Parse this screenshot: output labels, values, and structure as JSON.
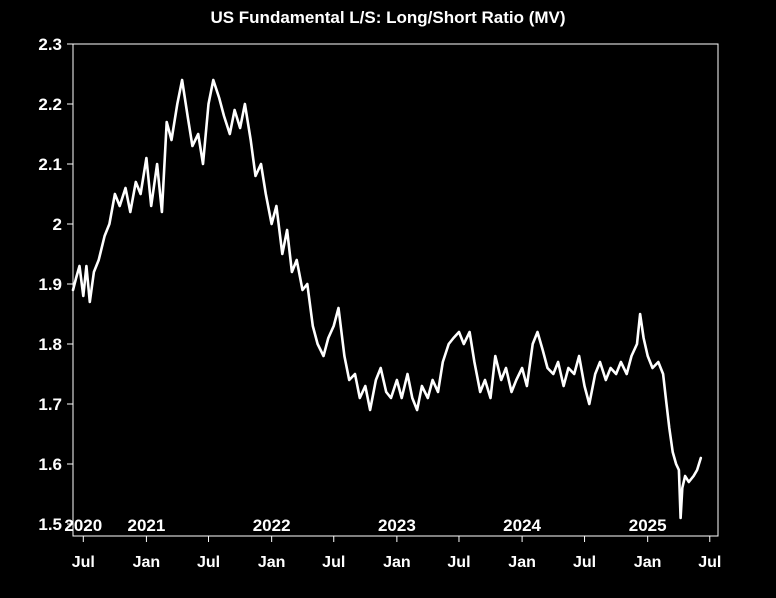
{
  "chart_data": {
    "type": "line",
    "title": "US Fundamental L/S: Long/Short Ratio (MV)",
    "xlabel": "",
    "ylabel": "",
    "ylim": [
      1.48,
      2.3
    ],
    "xlim": [
      "2020-06-01",
      "2025-07-25"
    ],
    "yticks": [
      {
        "value": 2.3,
        "label": "2.3"
      },
      {
        "value": 2.2,
        "label": "2.2"
      },
      {
        "value": 2.1,
        "label": "2.1"
      },
      {
        "value": 2.0,
        "label": "2"
      },
      {
        "value": 1.9,
        "label": "1.9"
      },
      {
        "value": 1.8,
        "label": "1.8"
      },
      {
        "value": 1.7,
        "label": "1.7"
      },
      {
        "value": 1.6,
        "label": "1.6"
      },
      {
        "value": 1.5,
        "label": "1.5"
      }
    ],
    "xticks": [
      {
        "date": "2020-07-01",
        "label": "Jul"
      },
      {
        "date": "2021-01-01",
        "label": "Jan"
      },
      {
        "date": "2021-07-01",
        "label": "Jul"
      },
      {
        "date": "2022-01-01",
        "label": "Jan"
      },
      {
        "date": "2022-07-01",
        "label": "Jul"
      },
      {
        "date": "2023-01-01",
        "label": "Jan"
      },
      {
        "date": "2023-07-01",
        "label": "Jul"
      },
      {
        "date": "2024-01-01",
        "label": "Jan"
      },
      {
        "date": "2024-07-01",
        "label": "Jul"
      },
      {
        "date": "2025-01-01",
        "label": "Jan"
      },
      {
        "date": "2025-07-01",
        "label": "Jul"
      }
    ],
    "year_labels": [
      {
        "date": "2020-07-01",
        "label": "2020"
      },
      {
        "date": "2021-01-01",
        "label": "2021"
      },
      {
        "date": "2022-01-01",
        "label": "2022"
      },
      {
        "date": "2023-01-01",
        "label": "2023"
      },
      {
        "date": "2024-01-01",
        "label": "2024"
      },
      {
        "date": "2025-01-01",
        "label": "2025"
      }
    ],
    "grid": false,
    "legend": "none",
    "colors": {
      "background": "#000000",
      "line": "#ffffff",
      "axis": "#ffffff",
      "text": "#ffffff"
    },
    "series": [
      {
        "points": [
          [
            "2020-06-01",
            1.89
          ],
          [
            "2020-06-10",
            1.91
          ],
          [
            "2020-06-20",
            1.93
          ],
          [
            "2020-07-01",
            1.88
          ],
          [
            "2020-07-10",
            1.93
          ],
          [
            "2020-07-20",
            1.87
          ],
          [
            "2020-08-01",
            1.92
          ],
          [
            "2020-08-15",
            1.94
          ],
          [
            "2020-09-01",
            1.98
          ],
          [
            "2020-09-15",
            2.0
          ],
          [
            "2020-10-01",
            2.05
          ],
          [
            "2020-10-15",
            2.03
          ],
          [
            "2020-11-01",
            2.06
          ],
          [
            "2020-11-15",
            2.02
          ],
          [
            "2020-12-01",
            2.07
          ],
          [
            "2020-12-15",
            2.05
          ],
          [
            "2021-01-01",
            2.11
          ],
          [
            "2021-01-15",
            2.03
          ],
          [
            "2021-02-01",
            2.1
          ],
          [
            "2021-02-15",
            2.02
          ],
          [
            "2021-03-01",
            2.17
          ],
          [
            "2021-03-15",
            2.14
          ],
          [
            "2021-04-01",
            2.2
          ],
          [
            "2021-04-15",
            2.24
          ],
          [
            "2021-05-01",
            2.18
          ],
          [
            "2021-05-15",
            2.13
          ],
          [
            "2021-06-01",
            2.15
          ],
          [
            "2021-06-15",
            2.1
          ],
          [
            "2021-07-01",
            2.2
          ],
          [
            "2021-07-15",
            2.24
          ],
          [
            "2021-08-01",
            2.21
          ],
          [
            "2021-08-15",
            2.18
          ],
          [
            "2021-09-01",
            2.15
          ],
          [
            "2021-09-15",
            2.19
          ],
          [
            "2021-10-01",
            2.16
          ],
          [
            "2021-10-15",
            2.2
          ],
          [
            "2021-11-01",
            2.14
          ],
          [
            "2021-11-15",
            2.08
          ],
          [
            "2021-12-01",
            2.1
          ],
          [
            "2021-12-15",
            2.05
          ],
          [
            "2022-01-01",
            2.0
          ],
          [
            "2022-01-15",
            2.03
          ],
          [
            "2022-02-01",
            1.95
          ],
          [
            "2022-02-15",
            1.99
          ],
          [
            "2022-03-01",
            1.92
          ],
          [
            "2022-03-15",
            1.94
          ],
          [
            "2022-04-01",
            1.89
          ],
          [
            "2022-04-15",
            1.9
          ],
          [
            "2022-05-01",
            1.83
          ],
          [
            "2022-05-15",
            1.8
          ],
          [
            "2022-06-01",
            1.78
          ],
          [
            "2022-06-15",
            1.81
          ],
          [
            "2022-07-01",
            1.83
          ],
          [
            "2022-07-15",
            1.86
          ],
          [
            "2022-08-01",
            1.78
          ],
          [
            "2022-08-15",
            1.74
          ],
          [
            "2022-09-01",
            1.75
          ],
          [
            "2022-09-15",
            1.71
          ],
          [
            "2022-10-01",
            1.73
          ],
          [
            "2022-10-15",
            1.69
          ],
          [
            "2022-11-01",
            1.74
          ],
          [
            "2022-11-15",
            1.76
          ],
          [
            "2022-12-01",
            1.72
          ],
          [
            "2022-12-15",
            1.71
          ],
          [
            "2023-01-01",
            1.74
          ],
          [
            "2023-01-15",
            1.71
          ],
          [
            "2023-02-01",
            1.75
          ],
          [
            "2023-02-15",
            1.71
          ],
          [
            "2023-03-01",
            1.69
          ],
          [
            "2023-03-15",
            1.73
          ],
          [
            "2023-04-01",
            1.71
          ],
          [
            "2023-04-15",
            1.74
          ],
          [
            "2023-05-01",
            1.72
          ],
          [
            "2023-05-15",
            1.77
          ],
          [
            "2023-06-01",
            1.8
          ],
          [
            "2023-06-15",
            1.81
          ],
          [
            "2023-07-01",
            1.82
          ],
          [
            "2023-07-15",
            1.8
          ],
          [
            "2023-08-01",
            1.82
          ],
          [
            "2023-08-15",
            1.77
          ],
          [
            "2023-09-01",
            1.72
          ],
          [
            "2023-09-15",
            1.74
          ],
          [
            "2023-10-01",
            1.71
          ],
          [
            "2023-10-15",
            1.78
          ],
          [
            "2023-11-01",
            1.74
          ],
          [
            "2023-11-15",
            1.76
          ],
          [
            "2023-12-01",
            1.72
          ],
          [
            "2023-12-15",
            1.74
          ],
          [
            "2024-01-01",
            1.76
          ],
          [
            "2024-01-15",
            1.73
          ],
          [
            "2024-02-01",
            1.8
          ],
          [
            "2024-02-15",
            1.82
          ],
          [
            "2024-03-01",
            1.79
          ],
          [
            "2024-03-15",
            1.76
          ],
          [
            "2024-04-01",
            1.75
          ],
          [
            "2024-04-15",
            1.77
          ],
          [
            "2024-05-01",
            1.73
          ],
          [
            "2024-05-15",
            1.76
          ],
          [
            "2024-06-01",
            1.75
          ],
          [
            "2024-06-15",
            1.78
          ],
          [
            "2024-07-01",
            1.73
          ],
          [
            "2024-07-15",
            1.7
          ],
          [
            "2024-08-01",
            1.75
          ],
          [
            "2024-08-15",
            1.77
          ],
          [
            "2024-09-01",
            1.74
          ],
          [
            "2024-09-15",
            1.76
          ],
          [
            "2024-10-01",
            1.75
          ],
          [
            "2024-10-15",
            1.77
          ],
          [
            "2024-11-01",
            1.75
          ],
          [
            "2024-11-15",
            1.78
          ],
          [
            "2024-12-01",
            1.8
          ],
          [
            "2024-12-10",
            1.85
          ],
          [
            "2024-12-20",
            1.81
          ],
          [
            "2025-01-01",
            1.78
          ],
          [
            "2025-01-15",
            1.76
          ],
          [
            "2025-02-01",
            1.77
          ],
          [
            "2025-02-15",
            1.75
          ],
          [
            "2025-02-25",
            1.7
          ],
          [
            "2025-03-05",
            1.66
          ],
          [
            "2025-03-15",
            1.62
          ],
          [
            "2025-03-25",
            1.6
          ],
          [
            "2025-04-02",
            1.59
          ],
          [
            "2025-04-07",
            1.51
          ],
          [
            "2025-04-12",
            1.56
          ],
          [
            "2025-04-20",
            1.58
          ],
          [
            "2025-05-01",
            1.57
          ],
          [
            "2025-05-15",
            1.58
          ],
          [
            "2025-05-25",
            1.59
          ],
          [
            "2025-06-05",
            1.61
          ]
        ]
      }
    ]
  }
}
